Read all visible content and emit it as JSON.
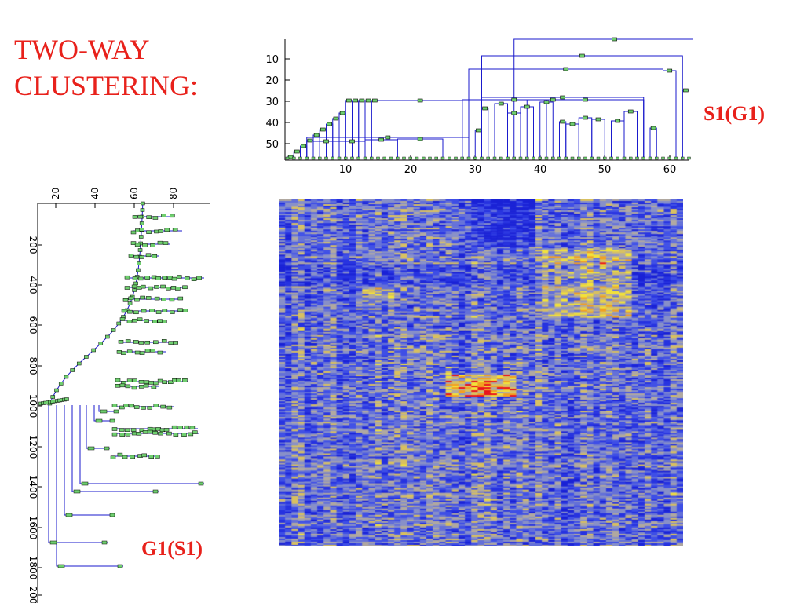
{
  "title": {
    "line1": "TWO-WAY",
    "line2": "CLUSTERING:"
  },
  "labels": {
    "top_dendrogram": "S1(G1)",
    "left_dendrogram": "G1(S1)"
  },
  "top_dendrogram": {
    "y_ticks": [
      "10",
      "20",
      "30",
      "40",
      "50"
    ],
    "x_ticks": [
      "10",
      "20",
      "30",
      "40",
      "50",
      "60"
    ]
  },
  "left_dendrogram": {
    "top_ticks": [
      "20",
      "40",
      "60",
      "80"
    ],
    "side_ticks": [
      "200",
      "400",
      "600",
      "800",
      "1000",
      "1200",
      "1400",
      "1600",
      "1800",
      "200"
    ]
  },
  "colors": {
    "tag": "#e8211b",
    "link": "#1a1acc",
    "node_fill": "#6fcf6f",
    "heat_blue": "#1e2fd8",
    "heat_red": "#e8101a",
    "heat_yellow": "#f2e23a"
  }
}
